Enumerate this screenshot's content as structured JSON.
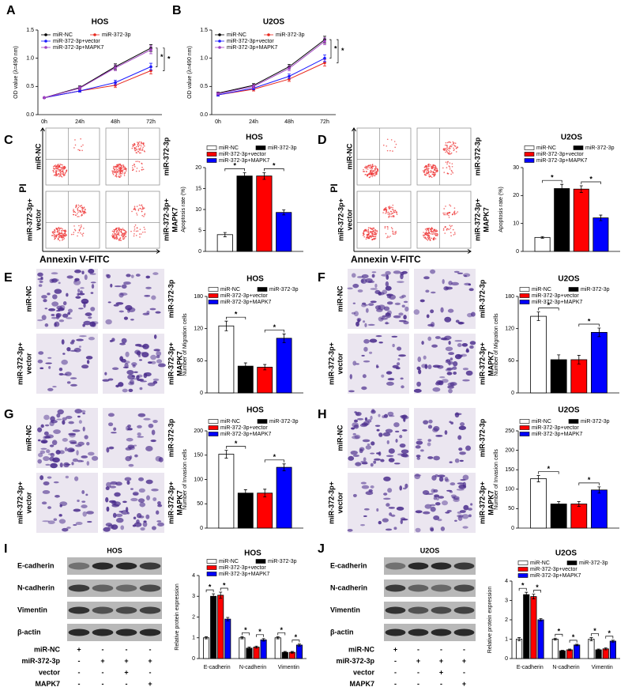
{
  "panel_letters": [
    "A",
    "B",
    "C",
    "D",
    "E",
    "F",
    "G",
    "H",
    "I",
    "J"
  ],
  "chart_data": [
    {
      "type": "line",
      "title": "HOS",
      "y_label": "OD value (λ=490 nm)",
      "categories": [
        "0h",
        "24h",
        "48h",
        "72h"
      ],
      "ylim": [
        0,
        1.5
      ],
      "yticks": [
        {
          "value": 0,
          "label": "0.0"
        },
        0.5,
        {
          "value": 1,
          "label": "1.0"
        },
        1.5
      ],
      "series": [
        {
          "name": "miR-NC",
          "color": "#000000",
          "values": [
            0.3,
            0.48,
            0.85,
            1.18
          ],
          "errors": [
            0.01,
            0.03,
            0.05,
            0.06
          ]
        },
        {
          "name": "miR-372-3p",
          "color": "#e8281e",
          "values": [
            0.3,
            0.42,
            0.52,
            0.78
          ],
          "errors": [
            0.01,
            0.02,
            0.04,
            0.06
          ]
        },
        {
          "name": "miR-372-3p+vector",
          "color": "#1a1aff",
          "values": [
            0.3,
            0.42,
            0.57,
            0.85
          ],
          "errors": [
            0.01,
            0.02,
            0.04,
            0.06
          ]
        },
        {
          "name": "miR-372-3p+MAPK7",
          "color": "#a040c0",
          "values": [
            0.3,
            0.47,
            0.83,
            1.15
          ],
          "errors": [
            0.01,
            0.03,
            0.05,
            0.07
          ]
        }
      ],
      "annotations": [
        "*",
        "*"
      ]
    },
    {
      "type": "line",
      "title": "U2OS",
      "y_label": "OD value (λ=490 nm)",
      "categories": [
        "0h",
        "24h",
        "48h",
        "72h"
      ],
      "ylim": [
        0,
        1.5
      ],
      "yticks": [
        {
          "value": 0,
          "label": "0.0"
        },
        0.5,
        {
          "value": 1,
          "label": "1.0"
        },
        1.5
      ],
      "series": [
        {
          "name": "miR-NC",
          "color": "#000000",
          "values": [
            0.38,
            0.52,
            0.85,
            1.33
          ],
          "errors": [
            0.02,
            0.03,
            0.04,
            0.06
          ]
        },
        {
          "name": "miR-372-3p",
          "color": "#e8281e",
          "values": [
            0.35,
            0.45,
            0.63,
            0.92
          ],
          "errors": [
            0.02,
            0.03,
            0.04,
            0.06
          ]
        },
        {
          "name": "miR-372-3p+vector",
          "color": "#1a1aff",
          "values": [
            0.35,
            0.47,
            0.68,
            1.0
          ],
          "errors": [
            0.02,
            0.03,
            0.04,
            0.06
          ]
        },
        {
          "name": "miR-372-3p+MAPK7",
          "color": "#a040c0",
          "values": [
            0.37,
            0.5,
            0.82,
            1.3
          ],
          "errors": [
            0.02,
            0.03,
            0.04,
            0.06
          ]
        }
      ],
      "annotations": [
        "*",
        "*"
      ]
    },
    {
      "type": "bar",
      "title": "HOS",
      "y_label": "Apoptosis rate (%)",
      "ylim": [
        0,
        20
      ],
      "yticks": [
        0,
        5,
        10,
        15,
        20
      ],
      "series": [
        {
          "name": "miR-NC",
          "color": "#ffffff",
          "values": [
            4
          ],
          "errors": [
            0.5
          ]
        },
        {
          "name": "miR-372-3p",
          "color": "#000000",
          "values": [
            18
          ],
          "errors": [
            0.8
          ]
        },
        {
          "name": "miR-372-3p+vector",
          "color": "#ff0000",
          "values": [
            18
          ],
          "errors": [
            0.8
          ]
        },
        {
          "name": "miR-372-3p+MAPK7",
          "color": "#0000ff",
          "values": [
            9.3
          ],
          "errors": [
            0.6
          ]
        }
      ],
      "annotations": [
        "*",
        "*"
      ]
    },
    {
      "type": "bar",
      "title": "U2OS",
      "y_label": "Apoptosis rate (%)",
      "ylim": [
        0,
        30
      ],
      "yticks": [
        0,
        10,
        20,
        30
      ],
      "series": [
        {
          "name": "miR-NC",
          "color": "#ffffff",
          "values": [
            5
          ],
          "errors": [
            0.3
          ]
        },
        {
          "name": "miR-372-3p",
          "color": "#000000",
          "values": [
            22.5
          ],
          "errors": [
            1.5
          ]
        },
        {
          "name": "miR-372-3p+vector",
          "color": "#ff0000",
          "values": [
            22.3
          ],
          "errors": [
            1.2
          ]
        },
        {
          "name": "miR-372-3p+MAPK7",
          "color": "#0000ff",
          "values": [
            12
          ],
          "errors": [
            1
          ]
        }
      ],
      "annotations": [
        "*",
        "*"
      ]
    },
    {
      "type": "bar",
      "title": "HOS",
      "y_label": "Number of Migration cells",
      "ylim": [
        0,
        180
      ],
      "yticks": [
        0,
        60,
        120,
        180
      ],
      "series": [
        {
          "name": "miR-NC",
          "color": "#ffffff",
          "values": [
            125
          ],
          "errors": [
            9
          ]
        },
        {
          "name": "miR-372-3p",
          "color": "#000000",
          "values": [
            50
          ],
          "errors": [
            6
          ]
        },
        {
          "name": "miR-372-3p+vector",
          "color": "#ff0000",
          "values": [
            48
          ],
          "errors": [
            5
          ]
        },
        {
          "name": "miR-372-3p+MAPK7",
          "color": "#0000ff",
          "values": [
            102
          ],
          "errors": [
            8
          ]
        }
      ],
      "annotations": [
        "*",
        "*"
      ]
    },
    {
      "type": "bar",
      "title": "U2OS",
      "y_label": "Number of Migration cells",
      "ylim": [
        0,
        180
      ],
      "yticks": [
        0,
        60,
        120,
        180
      ],
      "series": [
        {
          "name": "miR-NC",
          "color": "#ffffff",
          "values": [
            143
          ],
          "errors": [
            8
          ]
        },
        {
          "name": "miR-372-3p",
          "color": "#000000",
          "values": [
            62
          ],
          "errors": [
            9
          ]
        },
        {
          "name": "miR-372-3p+vector",
          "color": "#ff0000",
          "values": [
            62
          ],
          "errors": [
            8
          ]
        },
        {
          "name": "miR-372-3p+MAPK7",
          "color": "#0000ff",
          "values": [
            113
          ],
          "errors": [
            8
          ]
        }
      ],
      "annotations": [
        "*",
        "*"
      ]
    },
    {
      "type": "bar",
      "title": "HOS",
      "y_label": "Number of Invasion cells",
      "ylim": [
        0,
        200
      ],
      "yticks": [
        0,
        50,
        100,
        150,
        200
      ],
      "series": [
        {
          "name": "miR-NC",
          "color": "#ffffff",
          "values": [
            152
          ],
          "errors": [
            8
          ]
        },
        {
          "name": "miR-372-3p",
          "color": "#000000",
          "values": [
            72
          ],
          "errors": [
            7
          ]
        },
        {
          "name": "miR-372-3p+vector",
          "color": "#ff0000",
          "values": [
            72
          ],
          "errors": [
            8
          ]
        },
        {
          "name": "miR-372-3p+MAPK7",
          "color": "#0000ff",
          "values": [
            125
          ],
          "errors": [
            7
          ]
        }
      ],
      "annotations": [
        "*",
        "*"
      ]
    },
    {
      "type": "bar",
      "title": "U2OS",
      "y_label": "Number of Invasion cells",
      "ylim": [
        0,
        250
      ],
      "yticks": [
        0,
        50,
        100,
        150,
        200,
        250
      ],
      "series": [
        {
          "name": "miR-NC",
          "color": "#ffffff",
          "values": [
            127
          ],
          "errors": [
            8
          ]
        },
        {
          "name": "miR-372-3p",
          "color": "#000000",
          "values": [
            62
          ],
          "errors": [
            6
          ]
        },
        {
          "name": "miR-372-3p+vector",
          "color": "#ff0000",
          "values": [
            62
          ],
          "errors": [
            6
          ]
        },
        {
          "name": "miR-372-3p+MAPK7",
          "color": "#0000ff",
          "values": [
            98
          ],
          "errors": [
            8
          ]
        }
      ],
      "annotations": [
        "*",
        "*"
      ]
    },
    {
      "type": "bar",
      "title": "HOS",
      "y_label": "Relative protein expression",
      "categories": [
        "E-cadherin",
        "N-cadherin",
        "Vimentin"
      ],
      "ylim": [
        0,
        4
      ],
      "yticks": [
        0,
        1,
        2,
        3,
        4
      ],
      "series": [
        {
          "name": "miR-NC",
          "color": "#ffffff",
          "values": [
            1,
            1,
            1
          ],
          "errors": [
            0.05,
            0.05,
            0.05
          ]
        },
        {
          "name": "miR-372-3p",
          "color": "#000000",
          "values": [
            3.0,
            0.5,
            0.3
          ],
          "errors": [
            0.12,
            0.05,
            0.04
          ]
        },
        {
          "name": "miR-372-3p+vector",
          "color": "#ff0000",
          "values": [
            3.05,
            0.55,
            0.3
          ],
          "errors": [
            0.15,
            0.05,
            0.04
          ]
        },
        {
          "name": "miR-372-3p+MAPK7",
          "color": "#0000ff",
          "values": [
            1.9,
            0.9,
            0.65
          ],
          "errors": [
            0.08,
            0.06,
            0.05
          ]
        }
      ],
      "annotations": [
        "*",
        "*",
        "*",
        "*",
        "*",
        "*"
      ]
    },
    {
      "type": "bar",
      "title": "U2OS",
      "y_label": "Relative protein expression",
      "categories": [
        "E-cadherin",
        "N-cadherin",
        "Vimentin"
      ],
      "ylim": [
        0,
        4
      ],
      "yticks": [
        0,
        1,
        2,
        3,
        4
      ],
      "series": [
        {
          "name": "miR-NC",
          "color": "#ffffff",
          "values": [
            1,
            1,
            1
          ],
          "errors": [
            0.08,
            0.05,
            0.08
          ]
        },
        {
          "name": "miR-372-3p",
          "color": "#000000",
          "values": [
            3.3,
            0.4,
            0.45
          ],
          "errors": [
            0.12,
            0.03,
            0.04
          ]
        },
        {
          "name": "miR-372-3p+vector",
          "color": "#ff0000",
          "values": [
            3.2,
            0.45,
            0.5
          ],
          "errors": [
            0.12,
            0.04,
            0.05
          ]
        },
        {
          "name": "miR-372-3p+MAPK7",
          "color": "#0000ff",
          "values": [
            2.0,
            0.7,
            0.9
          ],
          "errors": [
            0.06,
            0.04,
            0.05
          ]
        }
      ],
      "annotations": [
        "*",
        "*",
        "*",
        "*",
        "*",
        "*"
      ]
    }
  ],
  "image_panels": [
    {
      "labels": [
        [
          "miR-NC"
        ],
        [
          "miR-372-3p"
        ],
        [
          "miR-372-3p+",
          "vector"
        ],
        [
          "miR-372-3p+",
          "MAPK7"
        ]
      ],
      "y_label": "PI",
      "x_label": "Annexin V-FITC"
    },
    {
      "labels": [
        [
          "miR-NC"
        ],
        [
          "miR-372-3p"
        ],
        [
          "miR-372-3p+",
          "vector"
        ],
        [
          "miR-372-3p+",
          "MAPK7"
        ]
      ],
      "y_label": "PI",
      "x_label": "Annexin V-FITC"
    },
    {
      "labels": [
        [
          "miR-NC"
        ],
        [
          "miR-372-3p"
        ],
        [
          "miR-372-3p+",
          "vector"
        ],
        [
          "miR-372-3p+",
          "MAPK7"
        ]
      ]
    },
    {
      "labels": [
        [
          "miR-NC"
        ],
        [
          "miR-372-3p"
        ],
        [
          "miR-372-3p+",
          "vector"
        ],
        [
          "miR-372-3p+",
          "MAPK7"
        ]
      ]
    },
    {
      "labels": [
        [
          "miR-NC"
        ],
        [
          "miR-372-3p"
        ],
        [
          "miR-372-3p+",
          "vector"
        ],
        [
          "miR-372-3p+",
          "MAPK7"
        ]
      ]
    },
    {
      "labels": [
        [
          "miR-NC"
        ],
        [
          "miR-372-3p"
        ],
        [
          "miR-372-3p+",
          "vector"
        ],
        [
          "miR-372-3p+",
          "MAPK7"
        ]
      ]
    }
  ],
  "blots": [
    {
      "title": "HOS",
      "proteins": [
        "E-cadherin",
        "N-cadherin",
        "Vimentin",
        "β-actin"
      ],
      "treatments": [
        {
          "name": "miR-NC",
          "signs": [
            "+",
            "-",
            "-",
            "-"
          ]
        },
        {
          "name": "miR-372-3p",
          "signs": [
            "-",
            "+",
            "+",
            "+"
          ]
        },
        {
          "name": "vector",
          "signs": [
            "-",
            "-",
            "+",
            "-"
          ]
        },
        {
          "name": "MAPK7",
          "signs": [
            "-",
            "-",
            "-",
            "+"
          ]
        }
      ]
    },
    {
      "title": "U2OS",
      "proteins": [
        "E-cadherin",
        "N-cadherin",
        "Vimentin",
        "β-actin"
      ],
      "treatments": [
        {
          "name": "miR-NC",
          "signs": [
            "+",
            "-",
            "-",
            "-"
          ]
        },
        {
          "name": "miR-372-3p",
          "signs": [
            "-",
            "+",
            "+",
            "+"
          ]
        },
        {
          "name": "vector",
          "signs": [
            "-",
            "-",
            "+",
            "-"
          ]
        },
        {
          "name": "MAPK7",
          "signs": [
            "-",
            "-",
            "-",
            "+"
          ]
        }
      ]
    }
  ]
}
